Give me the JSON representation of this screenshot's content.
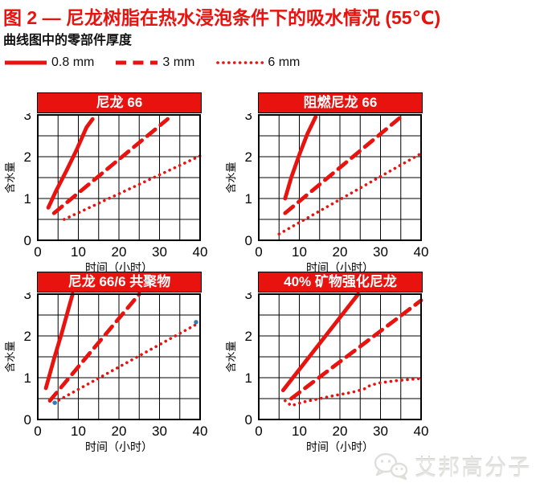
{
  "header": {
    "title": "图 2 — 尼龙树脂在热水浸泡条件下的吸水情况 (55℃)",
    "subtitle": "曲线图中的零部件厚度"
  },
  "legend": {
    "items": [
      {
        "label": "0.8 mm",
        "style": "solid"
      },
      {
        "label": "3 mm",
        "style": "dashed"
      },
      {
        "label": "6 mm",
        "style": "dotted"
      }
    ]
  },
  "colors": {
    "accent_red": "#e8120e",
    "banner_text": "#ffffff",
    "grid": "#000000",
    "frame": "#000000",
    "marker_blue": "#2e7bbf",
    "watermark_gray": "#e4e4e1"
  },
  "watermark": {
    "text": "艾邦高分子",
    "icon": "wechat-icon"
  },
  "chart_data": [
    {
      "type": "line",
      "title": "尼龙 66",
      "xlabel": "时间（小时）",
      "ylabel": "含水量",
      "xlim": [
        0,
        40
      ],
      "ylim": [
        0,
        3
      ],
      "xticks": [
        0,
        10,
        20,
        30,
        40
      ],
      "yticks": [
        0,
        1,
        2,
        3
      ],
      "x_grid_step": 5,
      "y_grid_step": 0.5,
      "series": [
        {
          "name": "0.8 mm",
          "style": "solid",
          "points": [
            [
              2.6,
              0.78
            ],
            [
              4.5,
              1.18
            ],
            [
              7,
              1.65
            ],
            [
              9.5,
              2.15
            ],
            [
              12,
              2.7
            ],
            [
              13.5,
              2.9
            ]
          ]
        },
        {
          "name": "3 mm",
          "style": "dashed",
          "points": [
            [
              4,
              0.65
            ],
            [
              32,
              2.9
            ]
          ]
        },
        {
          "name": "6 mm",
          "style": "dotted",
          "points": [
            [
              6.5,
              0.5
            ],
            [
              40,
              2.02
            ]
          ]
        }
      ]
    },
    {
      "type": "line",
      "title": "阻燃尼龙 66",
      "xlabel": "时间（小时）",
      "ylabel": "含水量",
      "xlim": [
        0,
        40
      ],
      "ylim": [
        0,
        3
      ],
      "xticks": [
        0,
        10,
        20,
        30,
        40
      ],
      "yticks": [
        0,
        1,
        2,
        3
      ],
      "x_grid_step": 5,
      "y_grid_step": 0.5,
      "series": [
        {
          "name": "0.8 mm",
          "style": "solid",
          "points": [
            [
              6.5,
              1.0
            ],
            [
              8,
              1.5
            ],
            [
              10,
              2.05
            ],
            [
              12,
              2.55
            ],
            [
              14,
              2.95
            ]
          ]
        },
        {
          "name": "3 mm",
          "style": "dashed",
          "points": [
            [
              6.5,
              0.65
            ],
            [
              35,
              2.95
            ]
          ]
        },
        {
          "name": "6 mm",
          "style": "dotted",
          "points": [
            [
              5,
              0.15
            ],
            [
              39.5,
              2.05
            ]
          ]
        }
      ]
    },
    {
      "type": "line",
      "title": "尼龙 66/6 共聚物",
      "xlabel": "时间（小时）",
      "ylabel": "含水量",
      "xlim": [
        0,
        40
      ],
      "ylim": [
        0,
        3
      ],
      "xticks": [
        0,
        10,
        20,
        30,
        40
      ],
      "yticks": [
        0,
        1,
        2,
        3
      ],
      "x_grid_step": 5,
      "y_grid_step": 0.5,
      "series": [
        {
          "name": "0.8 mm",
          "style": "solid",
          "points": [
            [
              2,
              0.75
            ],
            [
              4,
              1.45
            ],
            [
              6,
              2.1
            ],
            [
              8,
              2.8
            ],
            [
              8.6,
              3.0
            ]
          ]
        },
        {
          "name": "3 mm",
          "style": "dashed",
          "points": [
            [
              3,
              0.45
            ],
            [
              25,
              3.0
            ]
          ]
        },
        {
          "name": "6 mm",
          "style": "dotted",
          "points": [
            [
              4,
              0.4
            ],
            [
              39.5,
              2.3
            ]
          ]
        }
      ],
      "markers": [
        {
          "x": 4.2,
          "y": 0.4
        },
        {
          "x": 39,
          "y": 2.33
        }
      ]
    },
    {
      "type": "line",
      "title": "40% 矿物强化尼龙",
      "xlabel": "时间（小时）",
      "ylabel": "含水量",
      "xlim": [
        0,
        40
      ],
      "ylim": [
        0,
        3
      ],
      "xticks": [
        0,
        10,
        20,
        30,
        40
      ],
      "yticks": [
        0,
        1,
        2,
        3
      ],
      "x_grid_step": 5,
      "y_grid_step": 0.5,
      "series": [
        {
          "name": "0.8 mm",
          "style": "solid",
          "points": [
            [
              6,
              0.7
            ],
            [
              24.5,
              3.0
            ]
          ]
        },
        {
          "name": "3 mm",
          "style": "dashed",
          "points": [
            [
              8,
              0.5
            ],
            [
              40,
              2.85
            ]
          ]
        },
        {
          "name": "6 mm",
          "style": "dotted",
          "points": [
            [
              6.5,
              0.45
            ],
            [
              8,
              0.33
            ],
            [
              11,
              0.42
            ],
            [
              15,
              0.5
            ],
            [
              19,
              0.58
            ],
            [
              23,
              0.65
            ],
            [
              26,
              0.73
            ],
            [
              27.5,
              0.82
            ],
            [
              30,
              0.88
            ],
            [
              34,
              0.93
            ],
            [
              40,
              0.98
            ]
          ]
        }
      ]
    }
  ]
}
